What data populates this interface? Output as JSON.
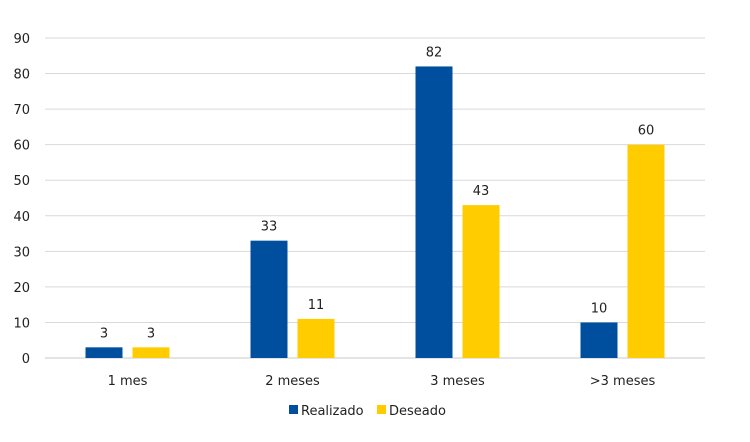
{
  "chart_data": {
    "type": "bar",
    "categories": [
      "1 mes",
      "2 meses",
      "3 meses",
      ">3 meses"
    ],
    "series": [
      {
        "name": "Realizado",
        "values": [
          3,
          33,
          82,
          10
        ],
        "color": "#004f9f"
      },
      {
        "name": "Deseado",
        "values": [
          3,
          11,
          43,
          60
        ],
        "color": "#ffcc00"
      }
    ],
    "yticks": [
      0,
      10,
      20,
      30,
      40,
      50,
      60,
      70,
      80,
      90
    ],
    "ylim": [
      0,
      90
    ],
    "grid": true,
    "legend": "bottom",
    "data_labels": true
  }
}
